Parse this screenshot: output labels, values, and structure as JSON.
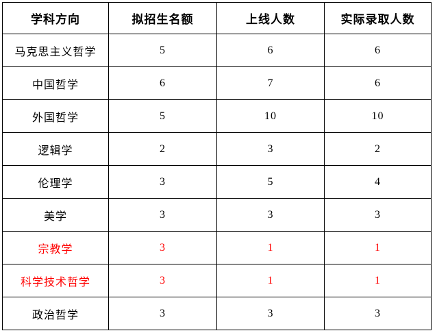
{
  "colors": {
    "border": "#000000",
    "text": "#000000",
    "highlight_red": "#ff0000",
    "background": "#ffffff"
  },
  "table": {
    "headers": [
      "学科方向",
      "拟招生名额",
      "上线人数",
      "实际录取人数"
    ],
    "rows": [
      {
        "label": "马克思主义哲学",
        "values": [
          "5",
          "6",
          "6"
        ],
        "highlighted": false
      },
      {
        "label": "中国哲学",
        "values": [
          "6",
          "7",
          "6"
        ],
        "highlighted": false
      },
      {
        "label": "外国哲学",
        "values": [
          "5",
          "10",
          "10"
        ],
        "highlighted": false
      },
      {
        "label": "逻辑学",
        "values": [
          "2",
          "3",
          "2"
        ],
        "highlighted": false
      },
      {
        "label": "伦理学",
        "values": [
          "3",
          "5",
          "4"
        ],
        "highlighted": false
      },
      {
        "label": "美学",
        "values": [
          "3",
          "3",
          "3"
        ],
        "highlighted": false
      },
      {
        "label": "宗教学",
        "values": [
          "3",
          "1",
          "1"
        ],
        "highlighted": true
      },
      {
        "label": "科学技术哲学",
        "values": [
          "3",
          "1",
          "1"
        ],
        "highlighted": true
      },
      {
        "label": "政治哲学",
        "values": [
          "3",
          "3",
          "3"
        ],
        "highlighted": false
      }
    ]
  },
  "chart_data": {
    "type": "table",
    "columns": [
      "学科方向",
      "拟招生名额",
      "上线人数",
      "实际录取人数"
    ],
    "rows": [
      [
        "马克思主义哲学",
        5,
        6,
        6
      ],
      [
        "中国哲学",
        6,
        7,
        6
      ],
      [
        "外国哲学",
        5,
        10,
        10
      ],
      [
        "逻辑学",
        2,
        3,
        2
      ],
      [
        "伦理学",
        3,
        5,
        4
      ],
      [
        "美学",
        3,
        3,
        3
      ],
      [
        "宗教学",
        3,
        1,
        1
      ],
      [
        "科学技术哲学",
        3,
        1,
        1
      ],
      [
        "政治哲学",
        3,
        3,
        3
      ]
    ],
    "highlighted_rows": [
      "宗教学",
      "科学技术哲学"
    ],
    "highlight_color": "#ff0000",
    "layout": {
      "grid": true,
      "header_bold": true,
      "cell_align": "center"
    }
  }
}
